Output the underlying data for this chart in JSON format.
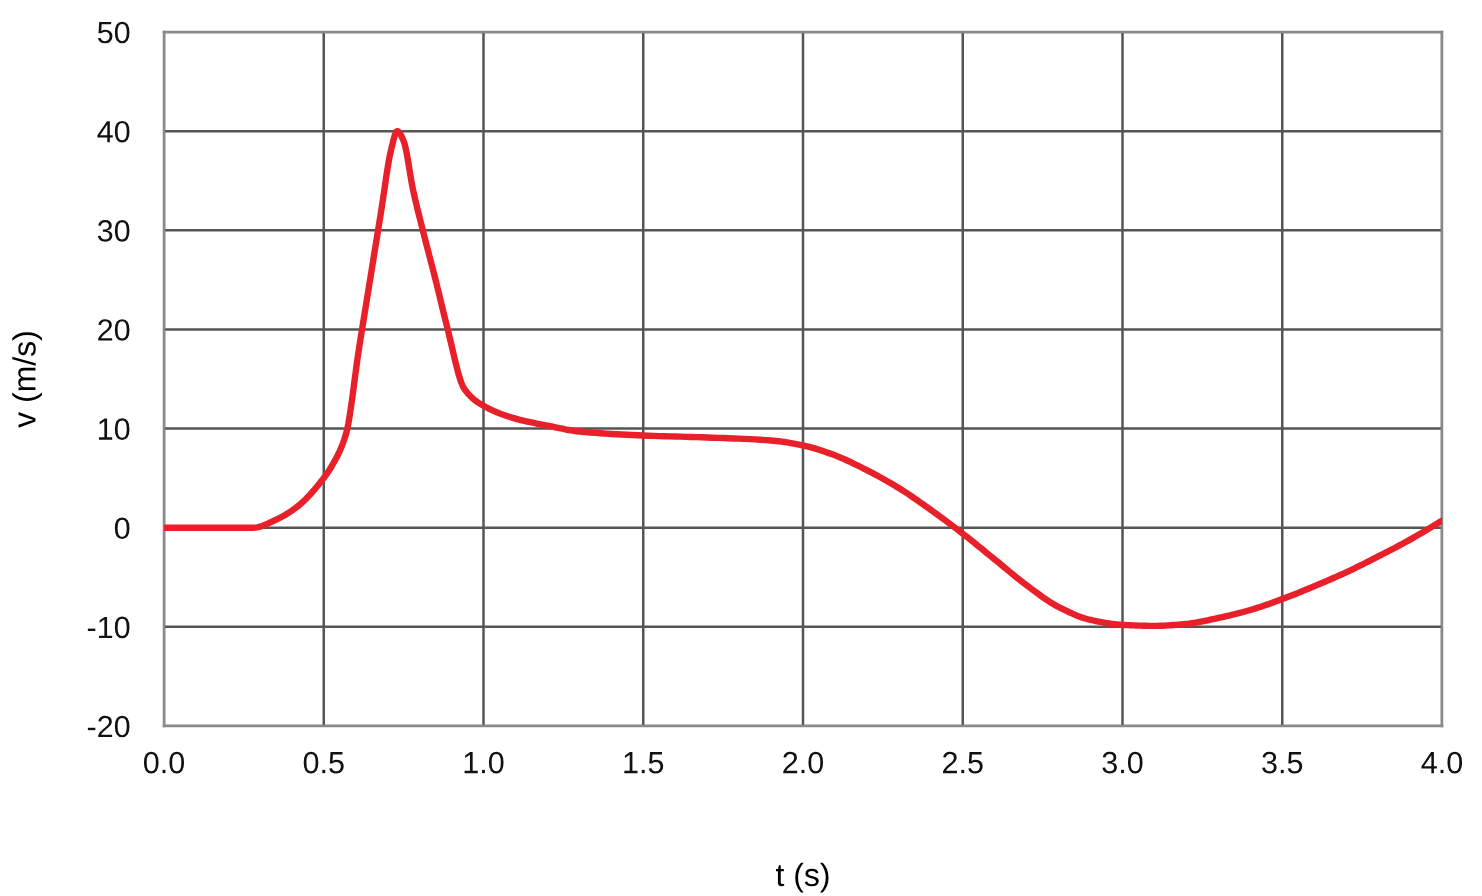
{
  "chart_data": {
    "type": "line",
    "xlabel": "t (s)",
    "ylabel": "v (m/s)",
    "x": [
      0,
      0.28,
      0.35,
      0.42,
      0.49,
      0.53,
      0.57,
      0.61,
      0.65,
      0.68,
      0.71,
      0.73,
      0.75,
      0.78,
      0.81,
      0.85,
      0.885,
      0.94,
      1.0,
      1.1,
      1.2,
      1.3,
      1.5,
      1.7,
      1.9,
      2.0,
      2.1,
      2.2,
      2.3,
      2.4,
      2.5,
      2.6,
      2.7,
      2.8,
      2.9,
      3.0,
      3.1,
      3.2,
      3.3,
      3.4,
      3.5,
      3.6,
      3.7,
      3.8,
      3.9,
      4.0
    ],
    "series": [
      {
        "color": "#e8202a",
        "values": [
          0,
          0,
          0.8,
          2.2,
          4.6,
          6.5,
          9.5,
          18,
          26,
          32,
          38,
          40,
          39,
          34,
          30,
          25,
          20.4,
          14,
          12.3,
          11,
          10.3,
          9.7,
          9.3,
          9.1,
          8.8,
          8.3,
          7.3,
          5.8,
          4.0,
          1.8,
          -0.6,
          -3.2,
          -5.8,
          -8.0,
          -9.3,
          -9.8,
          -9.9,
          -9.7,
          -9.1,
          -8.3,
          -7.2,
          -5.9,
          -4.5,
          -2.9,
          -1.2,
          0.7
        ]
      }
    ],
    "xlim": [
      0,
      4
    ],
    "ylim": [
      -20,
      50
    ],
    "xticks": [
      {
        "value": 0,
        "label": "0.0"
      },
      {
        "value": 0.5,
        "label": "0.5"
      },
      {
        "value": 1,
        "label": "1.0"
      },
      {
        "value": 1.5,
        "label": "1.5"
      },
      {
        "value": 2,
        "label": "2.0"
      },
      {
        "value": 2.5,
        "label": "2.5"
      },
      {
        "value": 3,
        "label": "3.0"
      },
      {
        "value": 3.5,
        "label": "3.5"
      },
      {
        "value": 4,
        "label": "4.0"
      }
    ],
    "yticks": [
      -20,
      -10,
      0,
      10,
      20,
      30,
      40,
      50
    ],
    "grid": true,
    "line_style": "solid"
  }
}
